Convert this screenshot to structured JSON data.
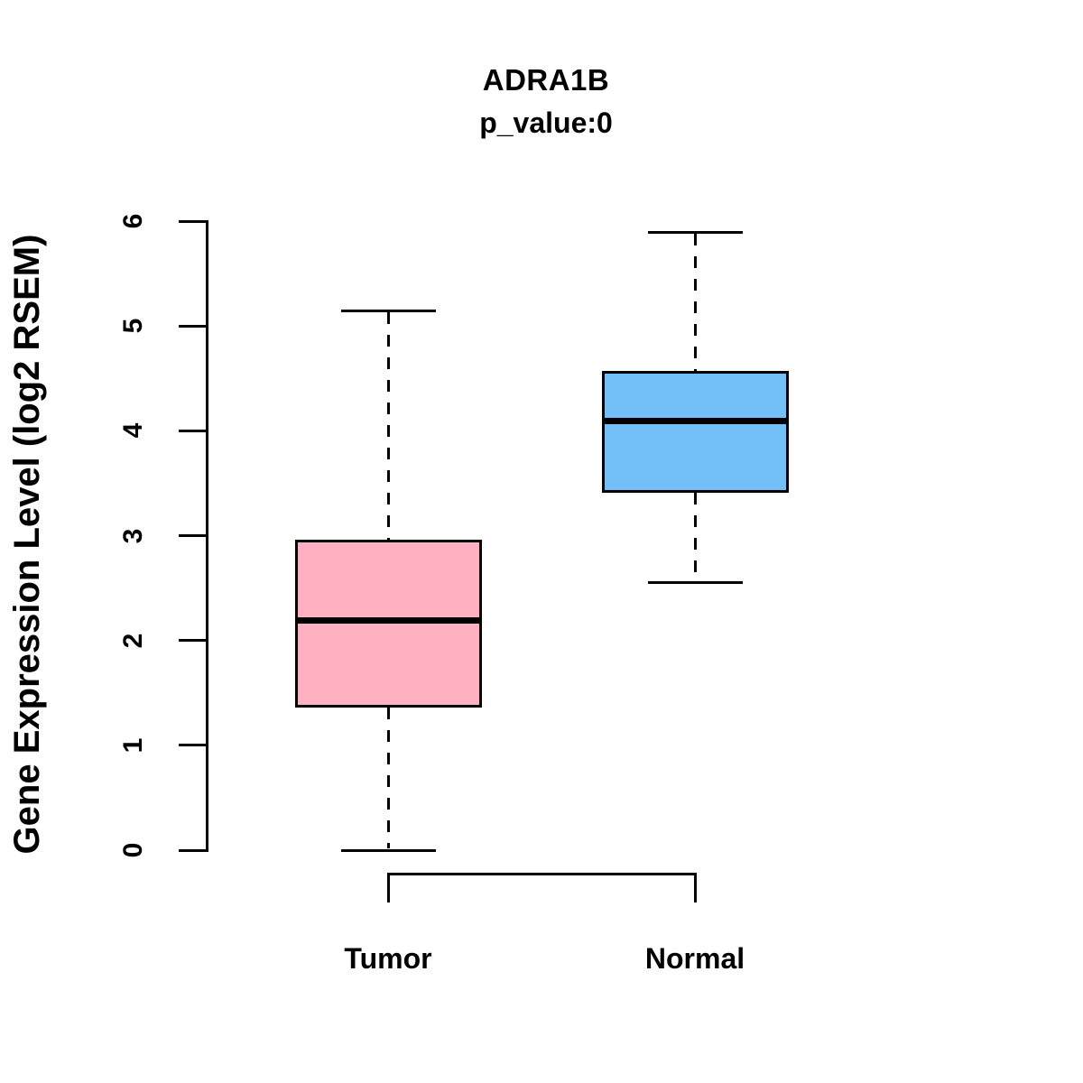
{
  "chart_data": {
    "type": "boxplot",
    "title": "ADRA1B",
    "subtitle": "p_value:0",
    "ylabel": "Gene Expression Level (log2 RSEM)",
    "xlabel": "",
    "ylim": [
      0,
      6
    ],
    "yticks": [
      0,
      1,
      2,
      3,
      4,
      5,
      6
    ],
    "grid": false,
    "legend": false,
    "categories": [
      "Tumor",
      "Normal"
    ],
    "series": [
      {
        "name": "Tumor",
        "min": 0,
        "q1": 1.37,
        "median": 2.19,
        "q3": 2.95,
        "max": 5.14,
        "color": "#FFB1C1"
      },
      {
        "name": "Normal",
        "min": 2.55,
        "q1": 3.42,
        "median": 4.09,
        "q3": 4.56,
        "max": 5.89,
        "color": "#73BFF7"
      }
    ],
    "comparison_bracket": {
      "from": "Tumor",
      "to": "Normal"
    },
    "colors": {
      "box_border": "#000000",
      "median": "#000000",
      "whisker": "#000000",
      "text": "#000000",
      "background": "#FFFFFF"
    }
  }
}
